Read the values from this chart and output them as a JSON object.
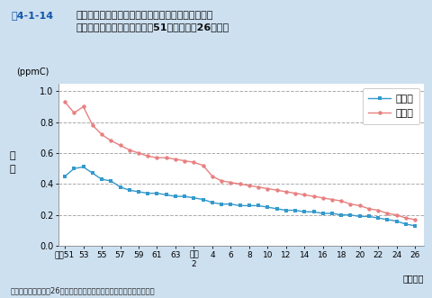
{
  "title_fig": "図4-1-14",
  "title_main": "非メタン炭化水素の午前６時〜午前９時における年\n平均値の経年変化推移（昭和51年度〜平成26年度）",
  "ylabel": "濃\n度",
  "yunits": "(ppmC)",
  "xlabel_note": "（年度）",
  "source": "資料：環境省「平成26年度大気汚染状況について（報道発表資料）」",
  "legend_ippan": "一般局",
  "legend_jihai": "自排局",
  "background": "#cde0f0",
  "plot_bg": "#ffffff",
  "ippan_color": "#3399cc",
  "jihai_color": "#e88080",
  "ylim": [
    0.0,
    1.05
  ],
  "yticks": [
    0.0,
    0.2,
    0.4,
    0.6,
    0.8,
    1.0
  ],
  "x_years": [
    1976,
    1977,
    1978,
    1979,
    1980,
    1981,
    1982,
    1983,
    1984,
    1985,
    1986,
    1987,
    1988,
    1989,
    1990,
    1991,
    1992,
    1993,
    1994,
    1995,
    1996,
    1997,
    1998,
    1999,
    2000,
    2001,
    2002,
    2003,
    2004,
    2005,
    2006,
    2007,
    2008,
    2009,
    2010,
    2011,
    2012,
    2013,
    2014
  ],
  "ippan_vals": [
    0.45,
    0.5,
    0.51,
    0.47,
    0.43,
    0.42,
    0.38,
    0.36,
    0.35,
    0.34,
    0.34,
    0.33,
    0.32,
    0.32,
    0.31,
    0.3,
    0.28,
    0.27,
    0.27,
    0.26,
    0.26,
    0.26,
    0.25,
    0.24,
    0.23,
    0.23,
    0.22,
    0.22,
    0.21,
    0.21,
    0.2,
    0.2,
    0.19,
    0.19,
    0.18,
    0.17,
    0.16,
    0.14,
    0.13
  ],
  "jihai_vals": [
    0.93,
    0.86,
    0.9,
    0.78,
    0.72,
    0.68,
    0.65,
    0.62,
    0.6,
    0.58,
    0.57,
    0.57,
    0.56,
    0.55,
    0.54,
    0.52,
    0.45,
    0.42,
    0.41,
    0.4,
    0.39,
    0.38,
    0.37,
    0.36,
    0.35,
    0.34,
    0.33,
    0.32,
    0.31,
    0.3,
    0.29,
    0.27,
    0.26,
    0.24,
    0.23,
    0.21,
    0.2,
    0.18,
    0.17
  ],
  "x_tick_labels": [
    "昭和51",
    "53",
    "55",
    "57",
    "59",
    "61",
    "63",
    "平成\n2",
    "4",
    "6",
    "8",
    "10",
    "12",
    "14",
    "16",
    "18",
    "20",
    "22",
    "24",
    "26"
  ],
  "x_tick_positions": [
    1976,
    1978,
    1980,
    1982,
    1984,
    1986,
    1988,
    1990,
    1992,
    1994,
    1996,
    1998,
    2000,
    2002,
    2004,
    2006,
    2008,
    2010,
    2012,
    2014
  ]
}
